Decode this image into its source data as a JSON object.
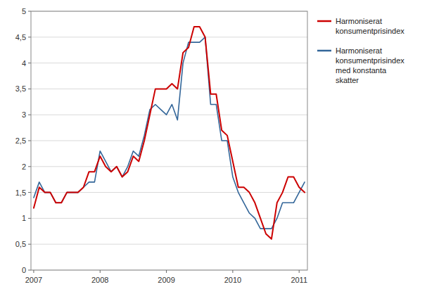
{
  "chart_data": {
    "type": "line",
    "categories": [
      "2007",
      null,
      null,
      null,
      null,
      null,
      null,
      null,
      null,
      null,
      null,
      null,
      "2008",
      null,
      null,
      null,
      null,
      null,
      null,
      null,
      null,
      null,
      null,
      null,
      "2009",
      null,
      null,
      null,
      null,
      null,
      null,
      null,
      null,
      null,
      null,
      null,
      "2010",
      null,
      null,
      null,
      null,
      null,
      null,
      null,
      null,
      null,
      null,
      null,
      "2011",
      null
    ],
    "series": [
      {
        "name": "Harmoniserat\nkonsumentprisindex",
        "color": "#cc0000",
        "values": [
          1.2,
          1.6,
          1.5,
          1.5,
          1.3,
          1.3,
          1.5,
          1.5,
          1.5,
          1.6,
          1.9,
          1.9,
          2.2,
          2.0,
          1.9,
          2.0,
          1.8,
          1.9,
          2.2,
          2.1,
          2.5,
          3.0,
          3.5,
          3.5,
          3.5,
          3.6,
          3.5,
          4.2,
          4.3,
          4.7,
          4.7,
          4.5,
          3.4,
          3.4,
          2.7,
          2.6,
          2.1,
          1.6,
          1.6,
          1.5,
          1.3,
          1.0,
          0.7,
          0.6,
          1.3,
          1.5,
          1.8,
          1.8,
          1.6,
          1.5
        ]
      },
      {
        "name": "Harmoniserat\nkonsumentprisindex\nmed konstanta\nskatter",
        "color": "#336699",
        "values": [
          1.4,
          1.7,
          1.5,
          1.5,
          1.3,
          1.3,
          1.5,
          1.5,
          1.5,
          1.6,
          1.7,
          1.7,
          2.3,
          2.1,
          1.9,
          2.0,
          1.8,
          2.0,
          2.3,
          2.2,
          2.6,
          3.1,
          3.2,
          3.1,
          3.0,
          3.2,
          2.9,
          4.0,
          4.4,
          4.4,
          4.4,
          4.5,
          3.2,
          3.2,
          2.5,
          2.5,
          1.8,
          1.5,
          1.3,
          1.1,
          1.0,
          0.8,
          0.8,
          0.8,
          1.0,
          1.3,
          1.3,
          1.3,
          1.5,
          1.7
        ]
      }
    ],
    "ylim": [
      0,
      5
    ],
    "yticks": [
      0,
      {
        "value": 0.5,
        "label": "0,5"
      },
      1,
      {
        "value": 1.5,
        "label": "1,5"
      },
      2,
      {
        "value": 2.5,
        "label": "2,5"
      },
      3,
      {
        "value": 3.5,
        "label": "3,5"
      },
      4,
      {
        "value": 4.5,
        "label": "4,5"
      },
      5
    ],
    "grid": true,
    "legend": "right"
  }
}
